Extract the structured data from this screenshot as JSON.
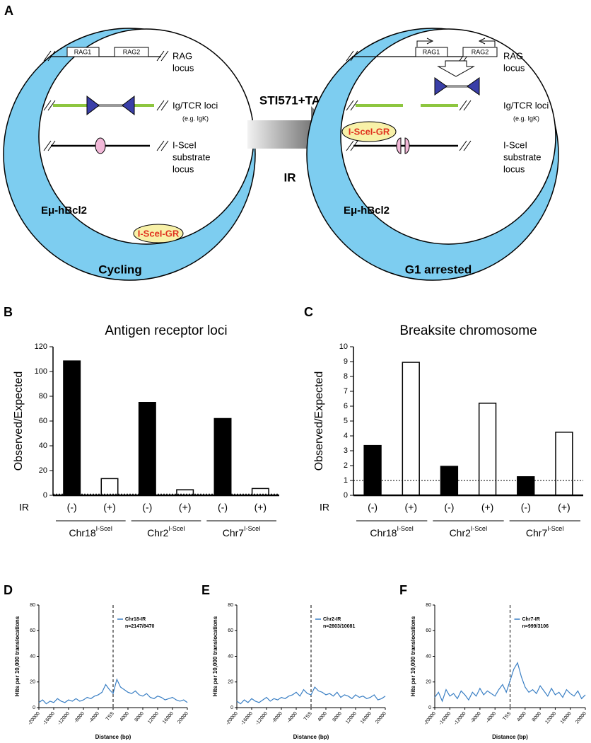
{
  "diagram": {
    "label": "A",
    "arrow": {
      "top": "STI571+TA",
      "bottom": "IR"
    },
    "cells": [
      {
        "rag": [
          "RAG1",
          "RAG2"
        ],
        "rag_locus": [
          "RAG",
          "locus"
        ],
        "ig_locus": "Ig/TCR loci",
        "ig_example": "(e.g. IgK)",
        "isce_locus": [
          "I-SceI",
          "substrate",
          "locus"
        ],
        "transgene": "Eμ-hBcl2",
        "enzyme": "I-SceI-GR",
        "state": "Cycling"
      },
      {
        "rag": [
          "RAG1",
          "RAG2"
        ],
        "rag_locus": [
          "RAG",
          "locus"
        ],
        "ig_locus": "Ig/TCR loci",
        "ig_example": "(e.g. IgK)",
        "isce_locus": [
          "I-SceI",
          "substrate",
          "locus"
        ],
        "transgene": "Eμ-hBcl2",
        "enzyme": "I-SceI-GR",
        "state": "G1 arrested"
      }
    ]
  },
  "chart_data": [
    {
      "type": "bar",
      "label": "B",
      "title": "Antigen receptor loci",
      "ylabel": "Observed/Expected",
      "row_label": "IR",
      "categories": [
        "(-)",
        "(+)",
        "(-)",
        "(+)",
        "(-)",
        "(+)"
      ],
      "values": [
        108.5,
        13.5,
        75,
        4.5,
        62,
        5.5
      ],
      "colors": [
        "#000000",
        "#ffffff",
        "#000000",
        "#ffffff",
        "#000000",
        "#ffffff"
      ],
      "groups": [
        {
          "label": "Chr18",
          "superscript": "I-SceI"
        },
        {
          "label": "Chr2",
          "superscript": "I-SceI"
        },
        {
          "label": "Chr7",
          "superscript": "I-SceI"
        }
      ],
      "ylim": [
        0,
        120
      ],
      "yticks": [
        0,
        20,
        40,
        60,
        80,
        100,
        120
      ],
      "reference_line": 1
    },
    {
      "type": "bar",
      "label": "C",
      "title": "Breaksite chromosome",
      "ylabel": "Observed/Expected",
      "row_label": "IR",
      "categories": [
        "(-)",
        "(+)",
        "(-)",
        "(+)",
        "(-)",
        "(+)"
      ],
      "values": [
        3.35,
        8.95,
        1.95,
        6.2,
        1.25,
        4.25
      ],
      "colors": [
        "#000000",
        "#ffffff",
        "#000000",
        "#ffffff",
        "#000000",
        "#ffffff"
      ],
      "groups": [
        {
          "label": "Chr18",
          "superscript": "I-SceI"
        },
        {
          "label": "Chr2",
          "superscript": "I-SceI"
        },
        {
          "label": "Chr7",
          "superscript": "I-SceI"
        }
      ],
      "ylim": [
        0,
        10
      ],
      "yticks": [
        0,
        1,
        2,
        3,
        4,
        5,
        6,
        7,
        8,
        9,
        10
      ],
      "reference_line": 1
    },
    {
      "type": "line",
      "label": "D",
      "ylabel": "Hits per 10,000 translocations",
      "xlabel": "Distance (bp)",
      "annotation": "n=2147/8470",
      "vline": 0,
      "x": [
        -20000,
        -19000,
        -18000,
        -17000,
        -16000,
        -15000,
        -14000,
        -13000,
        -12000,
        -11000,
        -10000,
        -9000,
        -8000,
        -7000,
        -6000,
        -5000,
        -4000,
        -3000,
        -2000,
        -1000,
        0,
        1000,
        2000,
        3000,
        4000,
        5000,
        6000,
        7000,
        8000,
        9000,
        10000,
        11000,
        12000,
        13000,
        14000,
        15000,
        16000,
        17000,
        18000,
        19000,
        20000
      ],
      "series": [
        {
          "name": "Chr18-IR",
          "color": "#3a7fc4",
          "values": [
            4,
            6,
            3,
            5,
            4,
            7,
            5,
            4,
            6,
            5,
            7,
            5,
            6,
            8,
            7,
            9,
            10,
            12,
            18,
            14,
            11,
            22,
            16,
            14,
            12,
            11,
            13,
            10,
            9,
            11,
            8,
            7,
            9,
            8,
            6,
            7,
            8,
            6,
            5,
            6,
            4
          ]
        }
      ],
      "xlim": [
        -20000,
        20000
      ],
      "ylim": [
        0,
        80
      ],
      "xticks": [
        -20000,
        -16000,
        -12000,
        -8000,
        -4000,
        {
          "value": 0,
          "label": "TSS"
        },
        4000,
        8000,
        12000,
        16000,
        20000
      ],
      "yticks": [
        0,
        20,
        40,
        60,
        80
      ]
    },
    {
      "type": "line",
      "label": "E",
      "ylabel": "Hits per 10,000 translocations",
      "xlabel": "Distance (bp)",
      "annotation": "n=2803/10081",
      "vline": 0,
      "x": [
        -20000,
        -19000,
        -18000,
        -17000,
        -16000,
        -15000,
        -14000,
        -13000,
        -12000,
        -11000,
        -10000,
        -9000,
        -8000,
        -7000,
        -6000,
        -5000,
        -4000,
        -3000,
        -2000,
        -1000,
        0,
        1000,
        2000,
        3000,
        4000,
        5000,
        6000,
        7000,
        8000,
        9000,
        10000,
        11000,
        12000,
        13000,
        14000,
        15000,
        16000,
        17000,
        18000,
        19000,
        20000
      ],
      "series": [
        {
          "name": "Chr2-IR",
          "color": "#3a7fc4",
          "values": [
            5,
            3,
            6,
            4,
            7,
            5,
            4,
            6,
            8,
            5,
            7,
            6,
            8,
            7,
            9,
            10,
            12,
            9,
            14,
            11,
            10,
            16,
            13,
            12,
            10,
            11,
            9,
            12,
            8,
            10,
            9,
            7,
            10,
            8,
            9,
            7,
            8,
            10,
            6,
            7,
            9
          ]
        }
      ],
      "xlim": [
        -20000,
        20000
      ],
      "ylim": [
        0,
        80
      ],
      "xticks": [
        -20000,
        -16000,
        -12000,
        -8000,
        -4000,
        {
          "value": 0,
          "label": "TSS"
        },
        4000,
        8000,
        12000,
        16000,
        20000
      ],
      "yticks": [
        0,
        20,
        40,
        60,
        80
      ]
    },
    {
      "type": "line",
      "label": "F",
      "ylabel": "Hits per 10,000 translocations",
      "xlabel": "Distance (bp)",
      "annotation": "n=999/3106",
      "vline": 0,
      "x": [
        -20000,
        -19000,
        -18000,
        -17000,
        -16000,
        -15000,
        -14000,
        -13000,
        -12000,
        -11000,
        -10000,
        -9000,
        -8000,
        -7000,
        -6000,
        -5000,
        -4000,
        -3000,
        -2000,
        -1000,
        0,
        1000,
        2000,
        3000,
        4000,
        5000,
        6000,
        7000,
        8000,
        9000,
        10000,
        11000,
        12000,
        13000,
        14000,
        15000,
        16000,
        17000,
        18000,
        19000,
        20000
      ],
      "series": [
        {
          "name": "Chr7-IR",
          "color": "#3a7fc4",
          "values": [
            8,
            12,
            5,
            14,
            9,
            11,
            7,
            13,
            10,
            6,
            12,
            9,
            15,
            10,
            13,
            11,
            9,
            14,
            18,
            12,
            21,
            30,
            35,
            24,
            16,
            12,
            14,
            11,
            17,
            13,
            9,
            15,
            10,
            12,
            8,
            14,
            11,
            9,
            13,
            7,
            10
          ]
        }
      ],
      "xlim": [
        -20000,
        20000
      ],
      "ylim": [
        0,
        80
      ],
      "xticks": [
        -20000,
        -16000,
        -12000,
        -8000,
        -4000,
        {
          "value": 0,
          "label": "TSS"
        },
        4000,
        8000,
        12000,
        16000,
        20000
      ],
      "yticks": [
        0,
        20,
        40,
        60,
        80
      ]
    }
  ]
}
